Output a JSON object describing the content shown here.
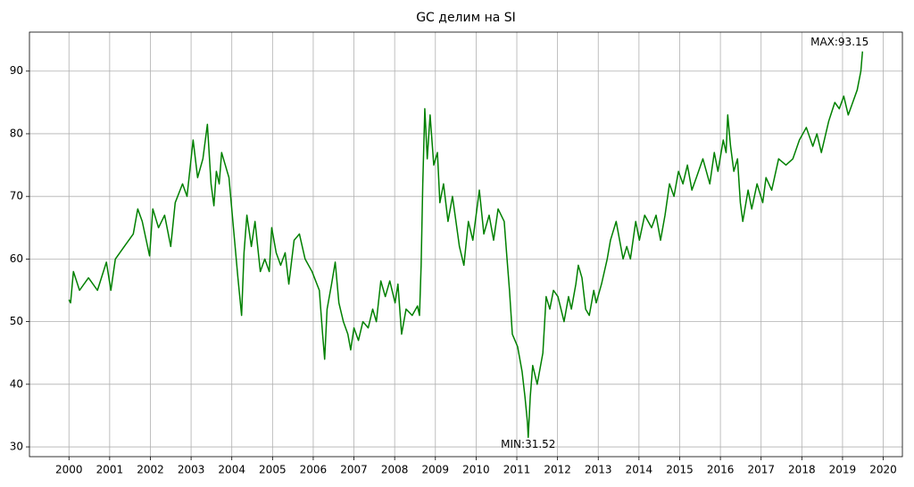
{
  "chart_data": {
    "type": "line",
    "title": "GC делим на SI",
    "x": [
      2000.0,
      2000.04,
      2000.11,
      2000.26,
      2000.48,
      2000.7,
      2000.92,
      2001.03,
      2001.14,
      2001.36,
      2001.58,
      2001.69,
      2001.8,
      2001.98,
      2002.06,
      2002.2,
      2002.35,
      2002.5,
      2002.61,
      2002.79,
      2002.9,
      2003.05,
      2003.16,
      2003.29,
      2003.4,
      2003.49,
      2003.56,
      2003.62,
      2003.69,
      2003.75,
      2003.84,
      2003.93,
      2004.04,
      2004.15,
      2004.24,
      2004.3,
      2004.37,
      2004.48,
      2004.57,
      2004.7,
      2004.81,
      2004.92,
      2004.98,
      2005.09,
      2005.2,
      2005.31,
      2005.4,
      2005.53,
      2005.66,
      2005.8,
      2005.97,
      2006.15,
      2006.23,
      2006.28,
      2006.34,
      2006.45,
      2006.54,
      2006.63,
      2006.74,
      2006.85,
      2006.92,
      2007.0,
      2007.11,
      2007.22,
      2007.35,
      2007.46,
      2007.55,
      2007.66,
      2007.77,
      2007.88,
      2008.01,
      2008.08,
      2008.17,
      2008.28,
      2008.43,
      2008.56,
      2008.61,
      2008.65,
      2008.69,
      2008.74,
      2008.8,
      2008.87,
      2008.96,
      2009.05,
      2009.11,
      2009.2,
      2009.31,
      2009.42,
      2009.59,
      2009.7,
      2009.81,
      2009.92,
      2010.08,
      2010.19,
      2010.32,
      2010.43,
      2010.54,
      2010.69,
      2010.76,
      2010.82,
      2010.89,
      2011.02,
      2011.13,
      2011.2,
      2011.26,
      2011.28,
      2011.33,
      2011.39,
      2011.5,
      2011.64,
      2011.72,
      2011.81,
      2011.9,
      2012.01,
      2012.16,
      2012.27,
      2012.34,
      2012.45,
      2012.51,
      2012.6,
      2012.69,
      2012.78,
      2012.89,
      2012.95,
      2013.08,
      2013.22,
      2013.3,
      2013.44,
      2013.61,
      2013.7,
      2013.79,
      2013.92,
      2014.01,
      2014.14,
      2014.31,
      2014.42,
      2014.53,
      2014.64,
      2014.75,
      2014.86,
      2014.97,
      2015.08,
      2015.19,
      2015.3,
      2015.41,
      2015.57,
      2015.74,
      2015.85,
      2015.94,
      2016.07,
      2016.14,
      2016.18,
      2016.25,
      2016.33,
      2016.42,
      2016.49,
      2016.55,
      2016.68,
      2016.77,
      2016.9,
      2017.04,
      2017.12,
      2017.26,
      2017.43,
      2017.61,
      2017.78,
      2017.94,
      2018.11,
      2018.27,
      2018.37,
      2018.48,
      2018.66,
      2018.81,
      2018.92,
      2019.03,
      2019.14,
      2019.25,
      2019.36,
      2019.45,
      2019.49
    ],
    "values": [
      53.5,
      53,
      58,
      55,
      57,
      55,
      59.5,
      55,
      60,
      62,
      64,
      68,
      66,
      60.5,
      68,
      65,
      67,
      62,
      69,
      72,
      70,
      79,
      73,
      76,
      81.5,
      72,
      68.5,
      74,
      72,
      77,
      75,
      73,
      65,
      57,
      51,
      61,
      67,
      62,
      66,
      58,
      60,
      58,
      65,
      61,
      59,
      61,
      56,
      63,
      64,
      60,
      58,
      55,
      48,
      44,
      52,
      56,
      59.5,
      53,
      50,
      48,
      45.5,
      49,
      47,
      50,
      49,
      52,
      50,
      56.5,
      54,
      56.5,
      53,
      56,
      48,
      52,
      51,
      52.5,
      51,
      59,
      72,
      84,
      76,
      83,
      75,
      77,
      69,
      72,
      66,
      70,
      62,
      59,
      66,
      63,
      71,
      64,
      67,
      63,
      68,
      66,
      60,
      55,
      48,
      46,
      42,
      38,
      34,
      31.52,
      38,
      43,
      40,
      45,
      54,
      52,
      55,
      54,
      50,
      54,
      52,
      56,
      59,
      57,
      52,
      51,
      55,
      53,
      56,
      60,
      63,
      66,
      60,
      62,
      60,
      66,
      63,
      67,
      65,
      67,
      63,
      67,
      72,
      70,
      74,
      72,
      75,
      71,
      73,
      76,
      72,
      77,
      74,
      79,
      77,
      83,
      78,
      74,
      76,
      69,
      66,
      71,
      68,
      72,
      69,
      73,
      71,
      76,
      75,
      76,
      79,
      81,
      78,
      80,
      77,
      82,
      85,
      84,
      86,
      83,
      85,
      87,
      90,
      93.15
    ],
    "color": "#008000",
    "xlim": [
      1999.03,
      2020.47
    ],
    "xticks": [
      2000,
      2001,
      2002,
      2003,
      2004,
      2005,
      2006,
      2007,
      2008,
      2009,
      2010,
      2011,
      2012,
      2013,
      2014,
      2015,
      2016,
      2017,
      2018,
      2019,
      2020
    ],
    "ylim": [
      28.44,
      96.23
    ],
    "yticks": [
      30,
      40,
      50,
      60,
      70,
      80,
      90
    ],
    "grid": true,
    "annotations": [
      {
        "text": "MIN:31.52",
        "x": 2011.28,
        "y": 31.52
      },
      {
        "text": "MAX:93.15",
        "x": 2019.49,
        "y": 93.15
      }
    ]
  }
}
